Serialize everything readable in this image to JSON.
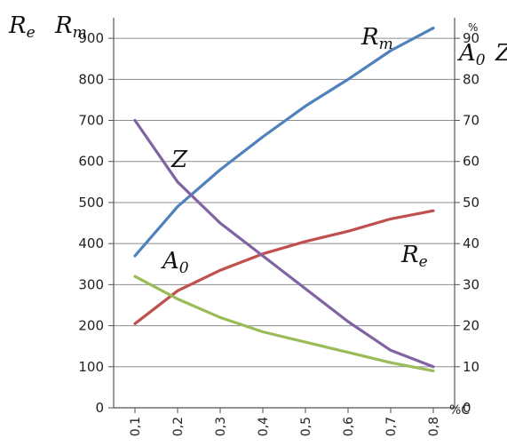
{
  "chart_data": {
    "type": "line",
    "x": [
      0.1,
      0.2,
      0.3,
      0.4,
      0.5,
      0.6,
      0.7,
      0.8
    ],
    "x_tick_labels": [
      "0,1",
      "0,2",
      "0,3",
      "0,4",
      "0,5",
      "0,6",
      "0,7",
      "0,8"
    ],
    "x_unit": "%C",
    "xlim": [
      0.05,
      0.85
    ],
    "left_axis": {
      "titles": [
        {
          "main": "R",
          "sub": "e"
        },
        {
          "main": "R",
          "sub": "m"
        }
      ],
      "ylim": [
        0,
        950
      ],
      "ticks": [
        0,
        100,
        200,
        300,
        400,
        500,
        600,
        700,
        800,
        900
      ]
    },
    "right_axis": {
      "unit": "%",
      "titles": [
        {
          "main": "A",
          "sub": "0"
        },
        {
          "main": "Z",
          "sub": ""
        }
      ],
      "ylim": [
        0,
        95
      ],
      "ticks": [
        0,
        10,
        20,
        30,
        40,
        50,
        60,
        70,
        80,
        90
      ]
    },
    "grid": {
      "horizontal": true,
      "vertical": false
    },
    "series": [
      {
        "name": "R",
        "sub": "m",
        "axis": "left",
        "color": "#4f81bd",
        "values": [
          370,
          490,
          580,
          660,
          735,
          800,
          870,
          925
        ]
      },
      {
        "name": "R",
        "sub": "e",
        "axis": "left",
        "color": "#c0504d",
        "values": [
          205,
          285,
          335,
          375,
          405,
          430,
          460,
          480
        ]
      },
      {
        "name": "Z",
        "sub": "",
        "axis": "right",
        "color": "#8064a2",
        "values": [
          70,
          55,
          45,
          37,
          29,
          21,
          14,
          10
        ]
      },
      {
        "name": "A",
        "sub": "0",
        "axis": "right",
        "color": "#9bbb59",
        "values": [
          32,
          26.5,
          22,
          18.5,
          16,
          13.5,
          11,
          9
        ]
      }
    ]
  }
}
